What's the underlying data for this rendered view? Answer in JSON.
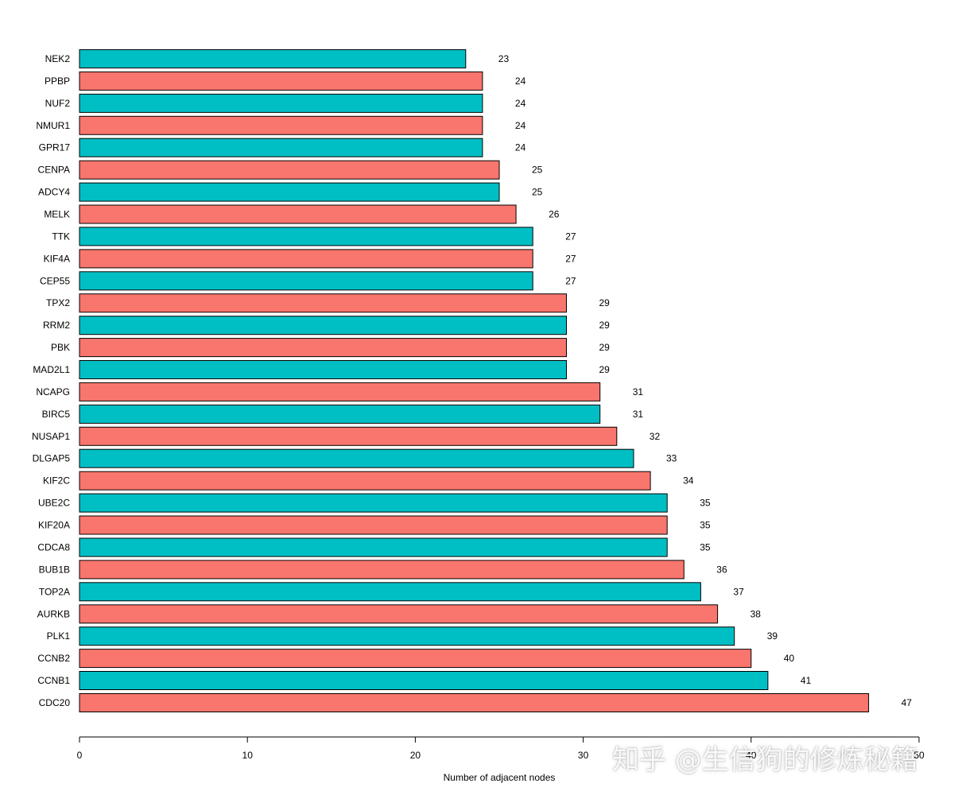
{
  "chart_data": {
    "type": "bar",
    "orientation": "horizontal",
    "categories": [
      "NEK2",
      "PPBP",
      "NUF2",
      "NMUR1",
      "GPR17",
      "CENPA",
      "ADCY4",
      "MELK",
      "TTK",
      "KIF4A",
      "CEP55",
      "TPX2",
      "RRM2",
      "PBK",
      "MAD2L1",
      "NCAPG",
      "BIRC5",
      "NUSAP1",
      "DLGAP5",
      "KIF2C",
      "UBE2C",
      "KIF20A",
      "CDCA8",
      "BUB1B",
      "TOP2A",
      "AURKB",
      "PLK1",
      "CCNB2",
      "CCNB1",
      "CDC20"
    ],
    "values": [
      23,
      24,
      24,
      24,
      24,
      25,
      25,
      26,
      27,
      27,
      27,
      29,
      29,
      29,
      29,
      31,
      31,
      32,
      33,
      34,
      35,
      35,
      35,
      36,
      37,
      38,
      39,
      40,
      41,
      47
    ],
    "value_labels": [
      "23",
      "24",
      "24",
      "24",
      "24",
      "25",
      "25",
      "26",
      "27",
      "27",
      "27",
      "29",
      "29",
      "29",
      "29",
      "31",
      "31",
      "32",
      "33",
      "34",
      "35",
      "35",
      "35",
      "36",
      "37",
      "38",
      "39",
      "40",
      "41",
      "47"
    ],
    "xlabel": "Number of adjacent nodes",
    "ylabel": "",
    "xlim": [
      0,
      50
    ],
    "xticks": [
      0,
      10,
      20,
      30,
      40,
      50
    ],
    "xtick_labels": [
      "0",
      "10",
      "20",
      "30",
      "40",
      "50"
    ],
    "grid": false,
    "colors": [
      "#00BFC4",
      "#F8766D"
    ],
    "bar_outline": "#000000"
  },
  "watermark": "知乎 @生信狗的修炼秘籍"
}
